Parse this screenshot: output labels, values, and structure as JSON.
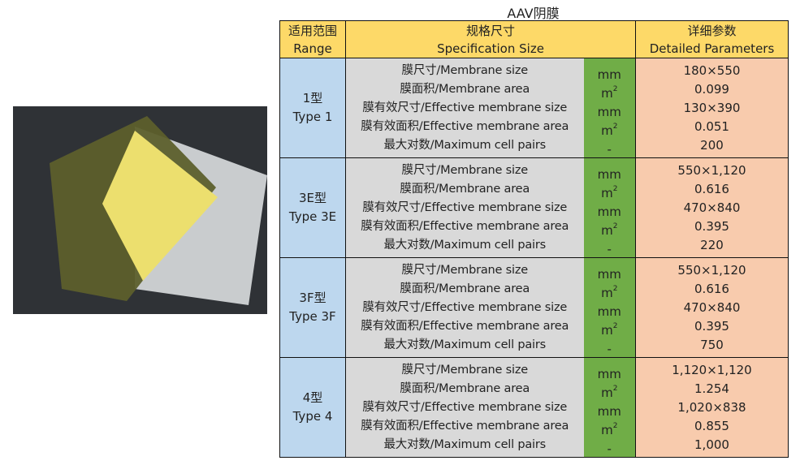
{
  "title": "AAV阴膜",
  "header": {
    "range": [
      "适用范围",
      "Range"
    ],
    "spec": [
      "规格尺寸",
      "Specification Size"
    ],
    "params": [
      "详细参数",
      "Detailed Parameters"
    ]
  },
  "spec_labels": [
    "膜尺寸/Membrane size",
    "膜面积/Membrane area",
    "膜有效尺寸/Effective membrane size",
    "膜有效面积/Effective membrane area",
    "最大对数/Maximum cell pairs"
  ],
  "units": [
    "mm",
    "m",
    "mm",
    "m",
    "-"
  ],
  "unit_superscripts": [
    "",
    "2",
    "",
    "2",
    ""
  ],
  "groups": [
    {
      "range": [
        "1型",
        "Type 1"
      ],
      "values": [
        "180×550",
        "0.099",
        "130×390",
        "0.051",
        "200"
      ]
    },
    {
      "range": [
        "3E型",
        "Type 3E"
      ],
      "values": [
        "550×1,120",
        "0.616",
        "470×840",
        "0.395",
        "220"
      ]
    },
    {
      "range": [
        "3F型",
        "Type 3F"
      ],
      "values": [
        "550×1,120",
        "0.616",
        "470×840",
        "0.395",
        "750"
      ]
    },
    {
      "range": [
        "4型",
        "Type 4"
      ],
      "values": [
        "1,120×1,120",
        "1.254",
        "1,020×838",
        "0.855",
        "1,000"
      ]
    }
  ],
  "colors": {
    "header": "#fdd968",
    "range": "#bdd7ee",
    "spec": "#d9d9d9",
    "unit": "#70ad47",
    "params": "#f8cbad"
  }
}
